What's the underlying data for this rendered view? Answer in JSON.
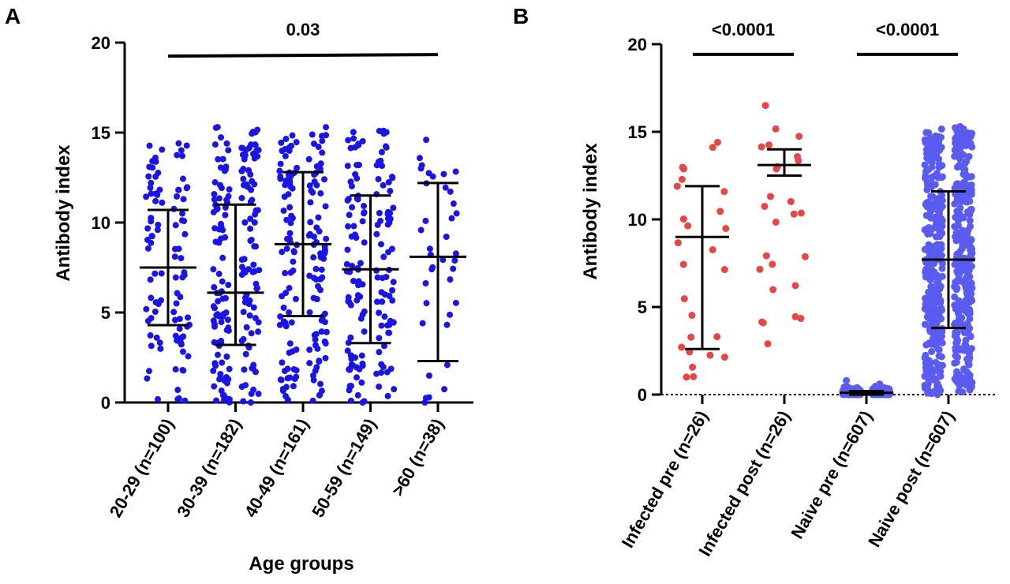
{
  "chart_data": [
    {
      "panel": "A",
      "type": "scatter",
      "xlabel": "Age groups",
      "ylabel": "Antibody index",
      "ylim": [
        0,
        20
      ],
      "yticks": [
        0,
        5,
        10,
        15,
        20
      ],
      "point_color": "#1a14e6",
      "categories": [
        "20-29 (n=100)",
        "30-39 (n=182)",
        "40-49 (n=161)",
        "50-59 (n=149)",
        ">60 (n=38)"
      ],
      "groups": [
        {
          "label": "20-29 (n=100)",
          "n": 100,
          "mean": 7.5,
          "sd_low": 4.3,
          "sd_high": 10.7,
          "min": 0.1,
          "max": 14.4
        },
        {
          "label": "30-39 (n=182)",
          "n": 182,
          "mean": 6.1,
          "sd_low": 3.2,
          "sd_high": 11.0,
          "min": 0.0,
          "max": 15.3
        },
        {
          "label": "40-49 (n=161)",
          "n": 161,
          "mean": 8.8,
          "sd_low": 4.8,
          "sd_high": 12.8,
          "min": 0.1,
          "max": 15.3
        },
        {
          "label": "50-59 (n=149)",
          "n": 149,
          "mean": 7.4,
          "sd_low": 3.3,
          "sd_high": 11.5,
          "min": 0.0,
          "max": 15.1
        },
        {
          ">60 label": "",
          "label": ">60 (n=38)",
          "n": 38,
          "mean": 8.1,
          "sd_low": 2.3,
          "sd_high": 12.2,
          "min": 0.0,
          "max": 14.6
        }
      ],
      "annotations": [
        {
          "text": "0.03",
          "from": 0,
          "to": 4,
          "y": 19.6
        }
      ]
    },
    {
      "panel": "B",
      "type": "scatter",
      "xlabel": "",
      "ylabel": "Antibody index",
      "ylim": [
        0,
        20
      ],
      "yticks": [
        0,
        5,
        10,
        15,
        20
      ],
      "categories": [
        "Infected pre (n=26)",
        "Infected post (n=26)",
        "Naive pre (n=607)",
        "Naive post (n=607)"
      ],
      "groups": [
        {
          "label": "Infected pre (n=26)",
          "n": 26,
          "color": "#e84545",
          "mean": 9.0,
          "sd_low": 2.6,
          "sd_high": 11.9,
          "min": 1.0,
          "max": 14.4
        },
        {
          "label": "Infected post (n=26)",
          "n": 26,
          "color": "#e84545",
          "mean": 13.1,
          "sd_low": 12.5,
          "sd_high": 14.0,
          "min": 2.9,
          "max": 16.5
        },
        {
          "label": "Naive pre (n=607)",
          "n": 607,
          "color": "#5a5cf0",
          "mean": 0.1,
          "sd_low": 0.0,
          "sd_high": 0.2,
          "min": 0.0,
          "max": 0.8
        },
        {
          "label": "Naive post (n=607)",
          "n": 607,
          "color": "#5a5cf0",
          "mean": 7.7,
          "sd_low": 3.8,
          "sd_high": 11.6,
          "min": 0.0,
          "max": 15.3
        }
      ],
      "annotations": [
        {
          "text": "<0.0001",
          "from": 0,
          "to": 1,
          "y": 19.6
        },
        {
          "text": "<0.0001",
          "from": 2,
          "to": 3,
          "y": 19.6
        }
      ]
    }
  ]
}
